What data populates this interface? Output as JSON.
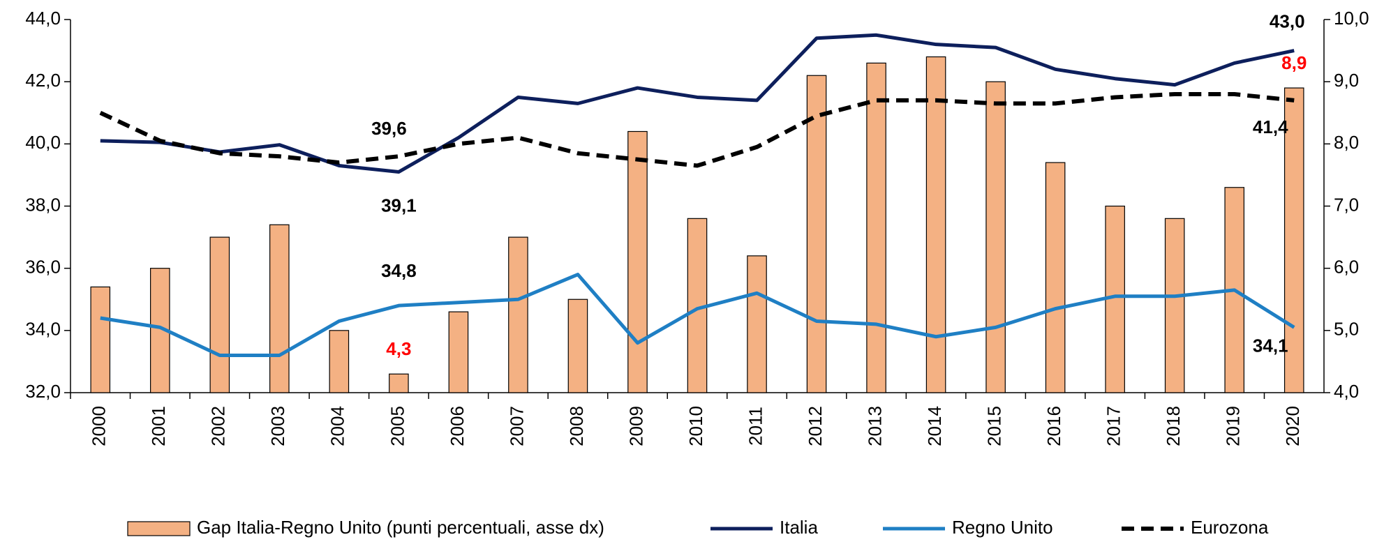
{
  "chart_data": {
    "type": "combo",
    "categories": [
      "2000",
      "2001",
      "2002",
      "2003",
      "2004",
      "2005",
      "2006",
      "2007",
      "2008",
      "2009",
      "2010",
      "2011",
      "2012",
      "2013",
      "2014",
      "2015",
      "2016",
      "2017",
      "2018",
      "2019",
      "2020"
    ],
    "series": [
      {
        "name": "Gap Italia-Regno Unito (punti percentuali, asse dx)",
        "type": "bar",
        "axis": "y2",
        "color": "#f4b183",
        "label_color": "#ff0000",
        "values": [
          5.7,
          6.0,
          6.5,
          6.7,
          5.0,
          4.3,
          5.3,
          6.5,
          5.5,
          8.2,
          6.8,
          6.2,
          9.1,
          9.3,
          9.4,
          9.0,
          7.7,
          7.0,
          6.8,
          7.3,
          8.9
        ],
        "value_labels": [
          null,
          null,
          null,
          null,
          null,
          "4,3",
          null,
          null,
          null,
          null,
          null,
          null,
          null,
          null,
          null,
          null,
          null,
          null,
          null,
          null,
          "8,9"
        ]
      },
      {
        "name": "Italia",
        "type": "line",
        "color": "#0d1f5c",
        "label_color": "#000000",
        "values": [
          40.1,
          40.05,
          39.74,
          39.97,
          39.3,
          39.1,
          40.2,
          41.5,
          41.3,
          41.8,
          41.5,
          41.4,
          43.4,
          43.5,
          43.2,
          43.1,
          42.4,
          42.1,
          41.9,
          42.6,
          43.0
        ],
        "value_labels": [
          null,
          null,
          null,
          null,
          null,
          "39,1",
          null,
          null,
          null,
          null,
          null,
          null,
          null,
          null,
          null,
          null,
          null,
          null,
          null,
          null,
          "43,0"
        ]
      },
      {
        "name": "Regno Unito",
        "type": "line",
        "color": "#1f7fc4",
        "label_color": "#000000",
        "values": [
          34.4,
          34.1,
          33.2,
          33.2,
          34.3,
          34.8,
          34.9,
          35.0,
          35.8,
          33.6,
          34.7,
          35.2,
          34.3,
          34.2,
          33.8,
          34.1,
          34.7,
          35.1,
          35.1,
          35.3,
          34.1
        ],
        "value_labels": [
          null,
          null,
          null,
          null,
          null,
          "34,8",
          null,
          null,
          null,
          null,
          null,
          null,
          null,
          null,
          null,
          null,
          null,
          null,
          null,
          null,
          "34,1"
        ]
      },
      {
        "name": "Eurozona",
        "type": "line",
        "color": "#000000",
        "dashed": true,
        "label_color": "#000000",
        "values": [
          41.0,
          40.1,
          39.7,
          39.6,
          39.4,
          39.6,
          40.0,
          40.2,
          39.7,
          39.5,
          39.3,
          39.9,
          40.9,
          41.4,
          41.4,
          41.3,
          41.3,
          41.5,
          41.6,
          41.6,
          41.4
        ],
        "value_labels": [
          null,
          null,
          null,
          null,
          null,
          "39,6",
          null,
          null,
          null,
          null,
          null,
          null,
          null,
          null,
          null,
          null,
          null,
          null,
          null,
          null,
          "41,4"
        ]
      }
    ],
    "ylim": [
      32,
      44
    ],
    "yticks": [
      {
        "value": 32,
        "label": "32,0"
      },
      {
        "value": 34,
        "label": "34,0"
      },
      {
        "value": 36,
        "label": "36,0"
      },
      {
        "value": 38,
        "label": "38,0"
      },
      {
        "value": 40,
        "label": "40,0"
      },
      {
        "value": 42,
        "label": "42,0"
      },
      {
        "value": 44,
        "label": "44,0"
      }
    ],
    "y2lim": [
      4,
      10
    ],
    "y2ticks": [
      {
        "value": 4,
        "label": "4,0"
      },
      {
        "value": 5,
        "label": "5,0"
      },
      {
        "value": 6,
        "label": "6,0"
      },
      {
        "value": 7,
        "label": "7,0"
      },
      {
        "value": 8,
        "label": "8,0"
      },
      {
        "value": 9,
        "label": "9,0"
      },
      {
        "value": 10,
        "label": "10,0"
      }
    ],
    "legend": "bottom"
  }
}
